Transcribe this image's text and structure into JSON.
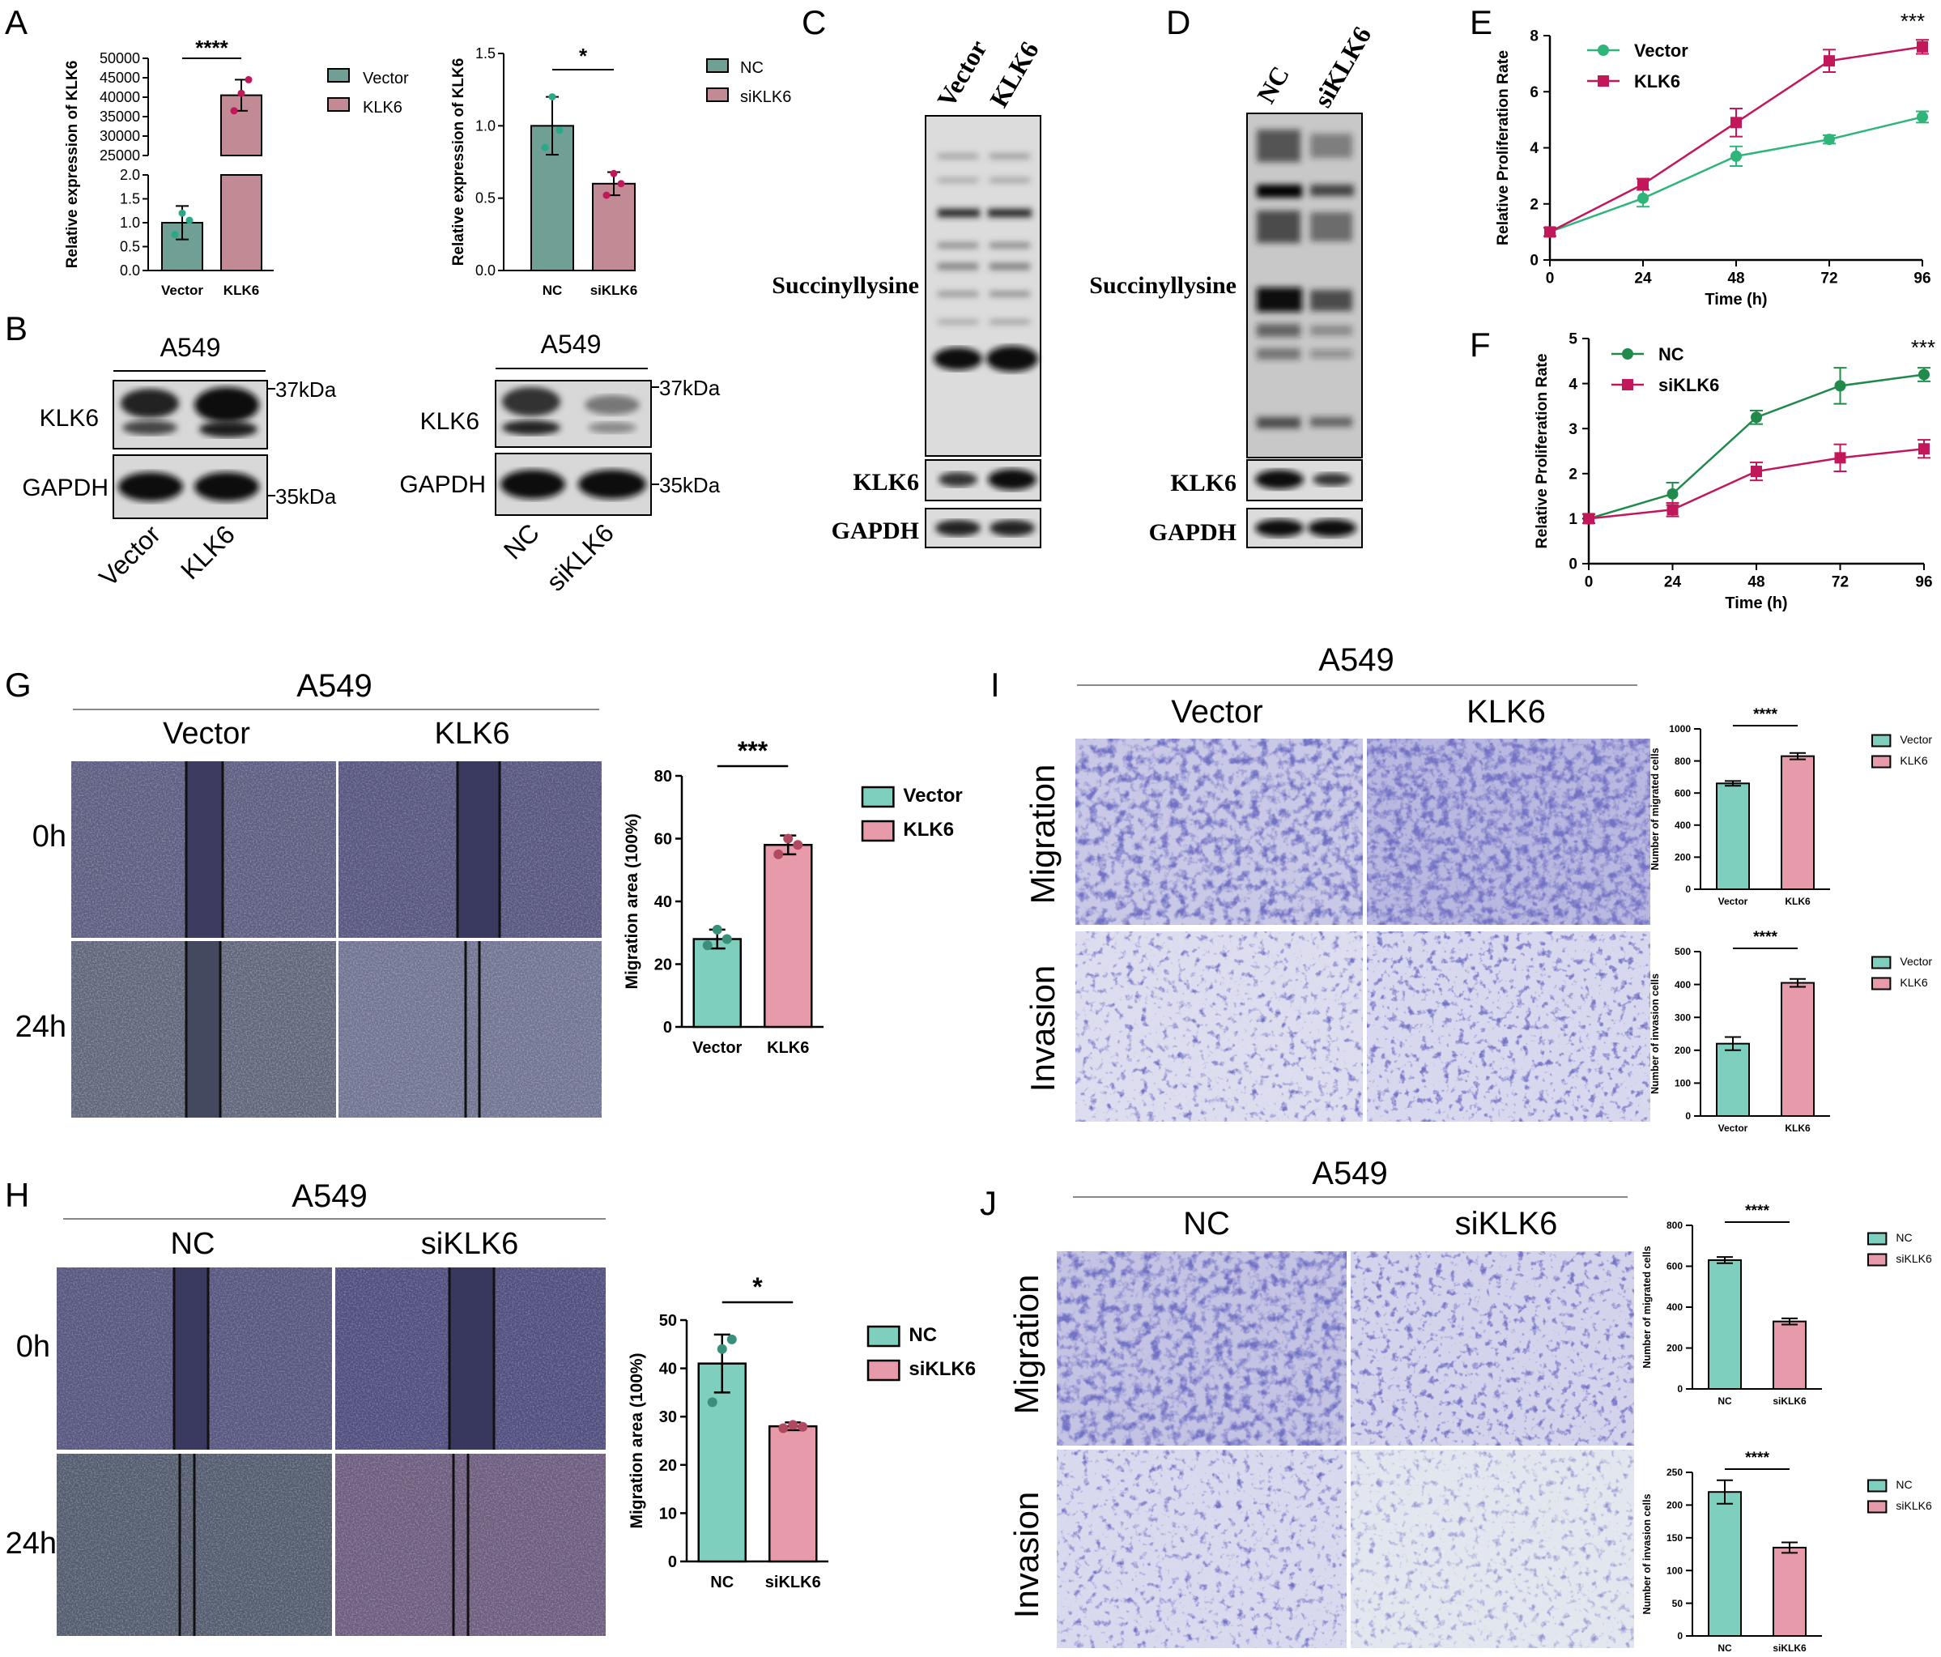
{
  "colors": {
    "teal": "#7fcfbf",
    "teal_dark": "#3a8f7a",
    "pink": "#e79aaa",
    "pink_dark": "#b04a60",
    "vector_line": "#2fb47a",
    "klk6_line": "#c2185b",
    "nc_line": "#1f8a4c",
    "siklk6_line": "#c2185b",
    "ab_teal": "#6f9f95",
    "ab_pink": "#c28a94",
    "stain": "#2a2a8f",
    "scratch_bg": "#5f5f86"
  },
  "panels": {
    "A": {
      "letter": "A"
    },
    "B": {
      "letter": "B",
      "left_title": "A549",
      "right_title": "A549",
      "left_rows": [
        "KLK6",
        "GAPDH"
      ],
      "right_rows": [
        "KLK6",
        "GAPDH"
      ],
      "mw_top": "37kDa",
      "mw_bottom": "35kDa",
      "left_lanes": [
        "Vector",
        "KLK6"
      ],
      "right_lanes": [
        "NC",
        "siKLK6"
      ]
    },
    "C": {
      "letter": "C",
      "lanes": [
        "Vector",
        "KLK6"
      ],
      "rows": [
        "Succinyllysine",
        "KLK6",
        "GAPDH"
      ]
    },
    "D": {
      "letter": "D",
      "lanes": [
        "NC",
        "siKLK6"
      ],
      "rows": [
        "Succinyllysine",
        "KLK6",
        "GAPDH"
      ]
    },
    "E": {
      "letter": "E",
      "sig": "***"
    },
    "F": {
      "letter": "F",
      "sig": "***"
    },
    "G": {
      "letter": "G",
      "title": "A549",
      "cols": [
        "Vector",
        "KLK6"
      ],
      "rows": [
        "0h",
        "24h"
      ]
    },
    "H": {
      "letter": "H",
      "title": "A549",
      "cols": [
        "NC",
        "siKLK6"
      ],
      "rows": [
        "0h",
        "24h"
      ]
    },
    "I": {
      "letter": "I",
      "title": "A549",
      "cols": [
        "Vector",
        "KLK6"
      ],
      "rows": [
        "Migration",
        "Invasion"
      ]
    },
    "J": {
      "letter": "J",
      "title": "A549",
      "cols": [
        "NC",
        "siKLK6"
      ],
      "rows": [
        "Migration",
        "Invasion"
      ]
    }
  },
  "chart_data": [
    {
      "id": "A-left",
      "type": "bar",
      "categories": [
        "Vector",
        "KLK6"
      ],
      "values": [
        1.0,
        40500
      ],
      "errors": [
        0.35,
        4000
      ],
      "points": [
        [
          0.75,
          1.2,
          1.05
        ],
        [
          36500,
          41000,
          44500
        ]
      ],
      "ylabel": "Relative expression of KLK6",
      "axis_break": {
        "lower": [
          0,
          2.0
        ],
        "upper": [
          25000,
          50000
        ]
      },
      "lower_ticks": [
        0.0,
        0.5,
        1.0,
        1.5,
        2.0
      ],
      "upper_ticks": [
        25000,
        30000,
        35000,
        40000,
        45000,
        50000
      ],
      "legend": [
        "Vector",
        "KLK6"
      ],
      "legend_position": "right",
      "significance": "****"
    },
    {
      "id": "A-right",
      "type": "bar",
      "categories": [
        "NC",
        "siKLK6"
      ],
      "values": [
        1.0,
        0.6
      ],
      "errors": [
        0.2,
        0.08
      ],
      "points": [
        [
          0.85,
          1.2,
          0.97
        ],
        [
          0.52,
          0.67,
          0.6
        ]
      ],
      "ylabel": "Relative expression of KLK6",
      "ylim": [
        0,
        1.5
      ],
      "yticks": [
        0.0,
        0.5,
        1.0,
        1.5
      ],
      "legend": [
        "NC",
        "siKLK6"
      ],
      "legend_position": "right",
      "significance": "*"
    },
    {
      "id": "E",
      "type": "line",
      "x": [
        0,
        24,
        48,
        72,
        96
      ],
      "series": [
        {
          "name": "Vector",
          "values": [
            1.0,
            2.2,
            3.7,
            4.3,
            5.1
          ],
          "errors": [
            0.15,
            0.3,
            0.35,
            0.15,
            0.2
          ]
        },
        {
          "name": "KLK6",
          "values": [
            1.0,
            2.7,
            4.9,
            7.1,
            7.6
          ],
          "errors": [
            0.15,
            0.2,
            0.5,
            0.4,
            0.25
          ]
        }
      ],
      "xlabel": "Time (h)",
      "ylabel": "Relative Proliferation Rate",
      "xlim": [
        0,
        96
      ],
      "ylim": [
        0,
        8
      ],
      "xticks": [
        0,
        24,
        48,
        72,
        96
      ],
      "yticks": [
        0,
        2,
        4,
        6,
        8
      ],
      "legend_position": "top-left"
    },
    {
      "id": "F",
      "type": "line",
      "x": [
        0,
        24,
        48,
        72,
        96
      ],
      "series": [
        {
          "name": "NC",
          "values": [
            1.0,
            1.55,
            3.25,
            3.95,
            4.2
          ],
          "errors": [
            0.1,
            0.25,
            0.15,
            0.4,
            0.15
          ]
        },
        {
          "name": "siKLK6",
          "values": [
            1.0,
            1.2,
            2.05,
            2.35,
            2.55
          ],
          "errors": [
            0.1,
            0.15,
            0.2,
            0.3,
            0.2
          ]
        }
      ],
      "xlabel": "Time (h)",
      "ylabel": "Relative Proliferation Rate",
      "xlim": [
        0,
        96
      ],
      "ylim": [
        0,
        5
      ],
      "xticks": [
        0,
        24,
        48,
        72,
        96
      ],
      "yticks": [
        0,
        1,
        2,
        3,
        4,
        5
      ],
      "legend_position": "top-left"
    },
    {
      "id": "G-bar",
      "type": "bar",
      "categories": [
        "Vector",
        "KLK6"
      ],
      "values": [
        28,
        58
      ],
      "errors": [
        3,
        3
      ],
      "points": [
        [
          26,
          31,
          28
        ],
        [
          55,
          60,
          58
        ]
      ],
      "ylabel": "Migration area (100%)",
      "ylim": [
        0,
        80
      ],
      "yticks": [
        0,
        20,
        40,
        60,
        80
      ],
      "legend": [
        "Vector",
        "KLK6"
      ],
      "legend_position": "right",
      "significance": "***"
    },
    {
      "id": "H-bar",
      "type": "bar",
      "categories": [
        "NC",
        "siKLK6"
      ],
      "values": [
        41,
        28
      ],
      "errors": [
        6,
        0.8
      ],
      "points": [
        [
          33,
          44,
          46
        ],
        [
          27.6,
          28.3,
          27.9
        ]
      ],
      "ylabel": "Migration area (100%)",
      "ylim": [
        0,
        50
      ],
      "yticks": [
        0,
        10,
        20,
        30,
        40,
        50
      ],
      "legend": [
        "NC",
        "siKLK6"
      ],
      "legend_position": "right",
      "significance": "*"
    },
    {
      "id": "I-mig",
      "type": "bar",
      "categories": [
        "Vector",
        "KLK6"
      ],
      "values": [
        660,
        830
      ],
      "errors": [
        15,
        20
      ],
      "ylabel": "Number of migrated cells",
      "ylim": [
        0,
        1000
      ],
      "yticks": [
        0,
        200,
        400,
        600,
        800,
        1000
      ],
      "legend": [
        "Vector",
        "KLK6"
      ],
      "legend_position": "right",
      "significance": "****"
    },
    {
      "id": "I-inv",
      "type": "bar",
      "categories": [
        "Vector",
        "KLK6"
      ],
      "values": [
        220,
        405
      ],
      "errors": [
        20,
        12
      ],
      "ylabel": "Number of invasion cells",
      "ylim": [
        0,
        500
      ],
      "yticks": [
        0,
        100,
        200,
        300,
        400,
        500
      ],
      "legend": [
        "Vector",
        "KLK6"
      ],
      "legend_position": "right",
      "significance": "****"
    },
    {
      "id": "J-mig",
      "type": "bar",
      "categories": [
        "NC",
        "siKLK6"
      ],
      "values": [
        630,
        330
      ],
      "errors": [
        15,
        15
      ],
      "ylabel": "Number of migrated cells",
      "ylim": [
        0,
        800
      ],
      "yticks": [
        0,
        200,
        400,
        600,
        800
      ],
      "legend": [
        "NC",
        "siKLK6"
      ],
      "legend_position": "right",
      "significance": "****"
    },
    {
      "id": "J-inv",
      "type": "bar",
      "categories": [
        "NC",
        "siKLK6"
      ],
      "values": [
        220,
        135
      ],
      "errors": [
        18,
        8
      ],
      "ylabel": "Number of invasion cells",
      "ylim": [
        0,
        250
      ],
      "yticks": [
        0,
        50,
        100,
        150,
        200,
        250
      ],
      "legend": [
        "NC",
        "siKLK6"
      ],
      "legend_position": "right",
      "significance": "****"
    }
  ]
}
